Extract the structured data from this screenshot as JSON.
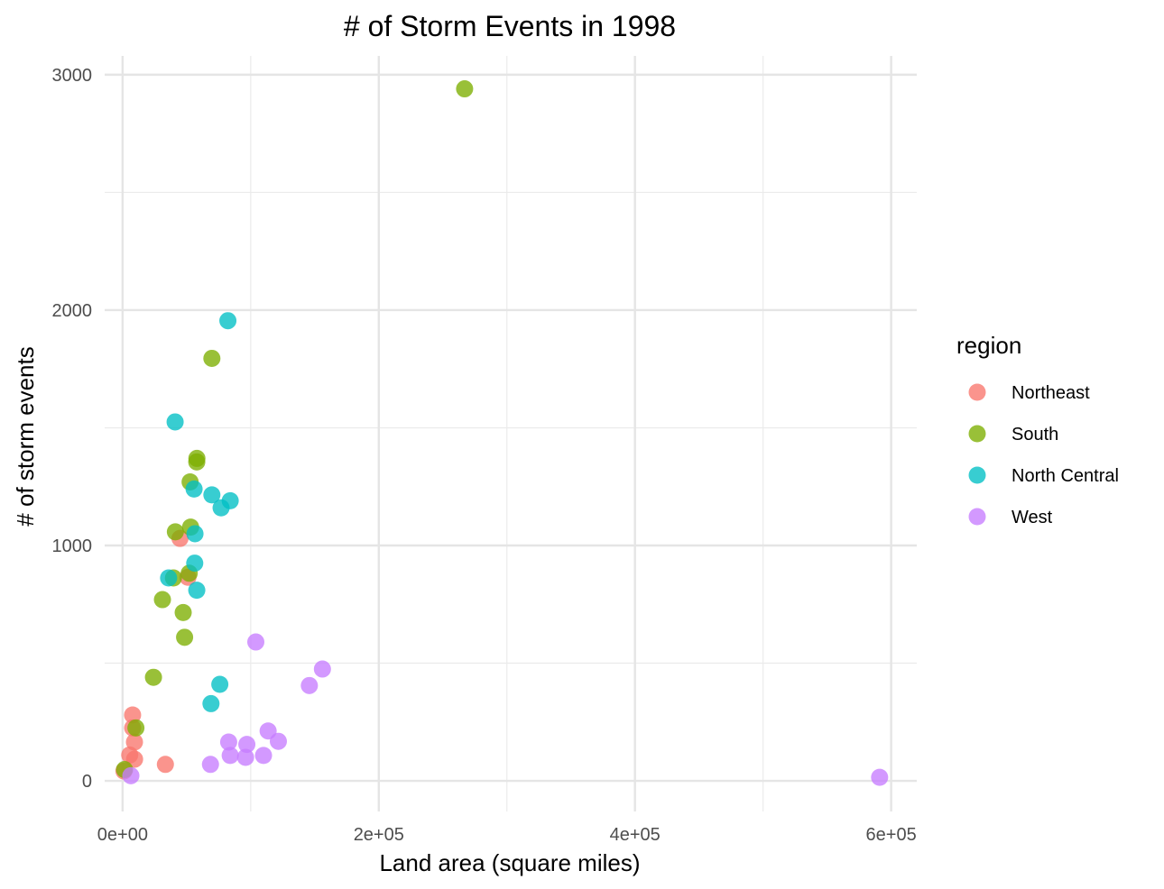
{
  "chart_data": {
    "type": "scatter",
    "title": "# of Storm Events in 1998",
    "xlabel": "Land area (square miles)",
    "ylabel": "# of storm events",
    "xlim": [
      -14000,
      620000
    ],
    "ylim": [
      -130,
      3080
    ],
    "x_ticks": [
      {
        "value": 0,
        "label": "0e+00"
      },
      {
        "value": 200000,
        "label": "2e+05"
      },
      {
        "value": 400000,
        "label": "4e+05"
      },
      {
        "value": 600000,
        "label": "6e+05"
      }
    ],
    "x_minor_ticks": [
      100000,
      300000,
      500000
    ],
    "y_ticks": [
      {
        "value": 0,
        "label": "0"
      },
      {
        "value": 1000,
        "label": "1000"
      },
      {
        "value": 2000,
        "label": "2000"
      },
      {
        "value": 3000,
        "label": "3000"
      }
    ],
    "y_minor_ticks": [
      500,
      1500,
      2500
    ],
    "grid": true,
    "legend": {
      "title": "region",
      "placement": "right"
    },
    "series": [
      {
        "name": "Northeast",
        "color": "#F8766D",
        "points": [
          {
            "x": 1045,
            "y": 42
          },
          {
            "x": 5543,
            "y": 110
          },
          {
            "x": 7800,
            "y": 280
          },
          {
            "x": 7840,
            "y": 225
          },
          {
            "x": 9250,
            "y": 165
          },
          {
            "x": 9350,
            "y": 92
          },
          {
            "x": 33400,
            "y": 70
          },
          {
            "x": 44800,
            "y": 1030
          },
          {
            "x": 51000,
            "y": 865
          }
        ]
      },
      {
        "name": "South",
        "color": "#7CAE00",
        "points": [
          {
            "x": 1500,
            "y": 48
          },
          {
            "x": 10400,
            "y": 225
          },
          {
            "x": 24100,
            "y": 440
          },
          {
            "x": 31100,
            "y": 770
          },
          {
            "x": 39700,
            "y": 862
          },
          {
            "x": 41200,
            "y": 1058
          },
          {
            "x": 47300,
            "y": 715
          },
          {
            "x": 48400,
            "y": 610
          },
          {
            "x": 52000,
            "y": 882
          },
          {
            "x": 52700,
            "y": 1270
          },
          {
            "x": 53100,
            "y": 1078
          },
          {
            "x": 57900,
            "y": 1355
          },
          {
            "x": 58000,
            "y": 1370
          },
          {
            "x": 69700,
            "y": 1795
          },
          {
            "x": 267000,
            "y": 2940
          }
        ]
      },
      {
        "name": "North Central",
        "color": "#00BFC4",
        "points": [
          {
            "x": 35900,
            "y": 862
          },
          {
            "x": 41000,
            "y": 1525
          },
          {
            "x": 55800,
            "y": 1240
          },
          {
            "x": 56300,
            "y": 925
          },
          {
            "x": 56500,
            "y": 1050
          },
          {
            "x": 57900,
            "y": 810
          },
          {
            "x": 69000,
            "y": 328
          },
          {
            "x": 69700,
            "y": 1215
          },
          {
            "x": 75900,
            "y": 410
          },
          {
            "x": 76900,
            "y": 1160
          },
          {
            "x": 82200,
            "y": 1955
          },
          {
            "x": 84000,
            "y": 1190
          }
        ]
      },
      {
        "name": "West",
        "color": "#C77CFF",
        "points": [
          {
            "x": 6450,
            "y": 22
          },
          {
            "x": 68600,
            "y": 70
          },
          {
            "x": 82800,
            "y": 165
          },
          {
            "x": 84000,
            "y": 108
          },
          {
            "x": 96000,
            "y": 100
          },
          {
            "x": 97000,
            "y": 155
          },
          {
            "x": 104000,
            "y": 590
          },
          {
            "x": 110000,
            "y": 108
          },
          {
            "x": 113600,
            "y": 212
          },
          {
            "x": 121600,
            "y": 168
          },
          {
            "x": 145800,
            "y": 405
          },
          {
            "x": 156000,
            "y": 475
          },
          {
            "x": 591000,
            "y": 15
          }
        ]
      }
    ]
  }
}
